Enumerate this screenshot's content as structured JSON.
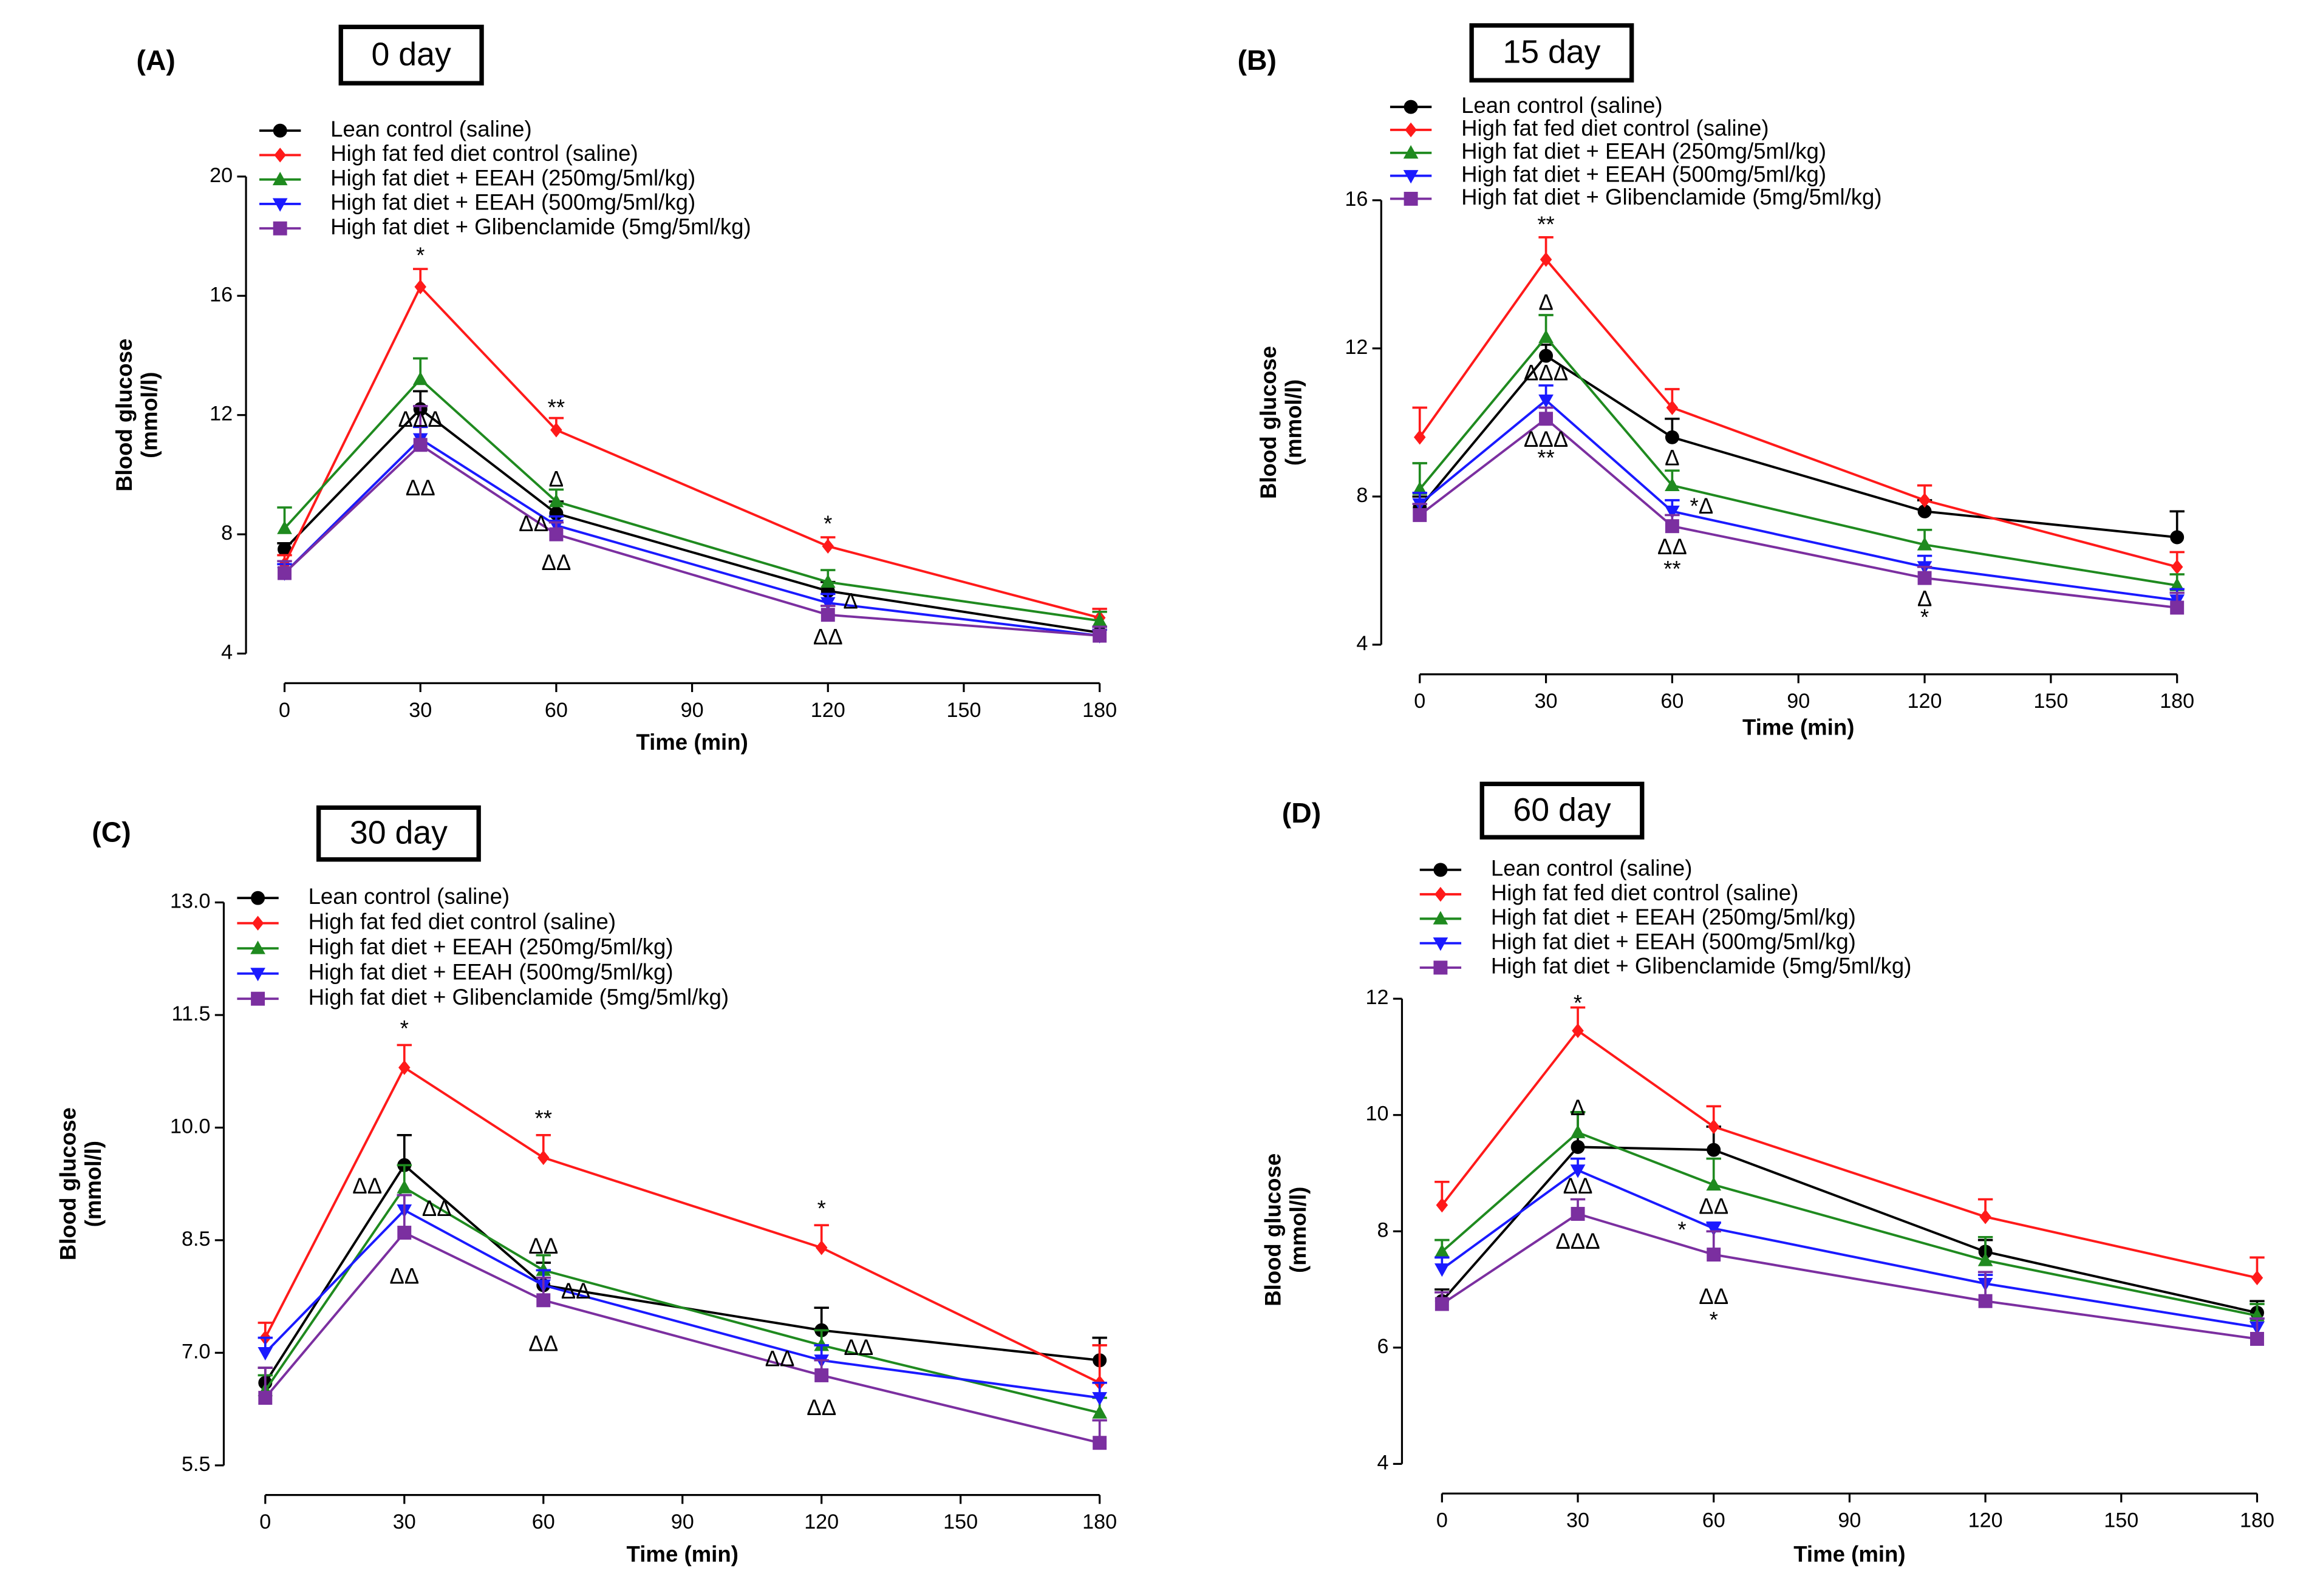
{
  "chart_data": [
    {
      "type": "line",
      "panel": "(A)",
      "title": "0 day",
      "xlabel": "Time (min)",
      "ylabel": [
        "Blood glucose",
        "(mmol/l)"
      ],
      "x": [
        0,
        30,
        60,
        120,
        180
      ],
      "xlim": [
        0,
        180
      ],
      "xticks": [
        0,
        30,
        60,
        90,
        120,
        150,
        180
      ],
      "ylim": [
        4,
        20
      ],
      "yticks": [
        4,
        8,
        12,
        16,
        20
      ],
      "series": [
        {
          "name": "Lean control (saline)",
          "color": "#000000",
          "marker": "circle",
          "values": [
            7.5,
            12.2,
            8.7,
            6.1,
            4.7
          ],
          "errors": [
            0.2,
            0.6,
            0.4,
            0.3,
            0.2
          ]
        },
        {
          "name": "High fat fed diet control (saline)",
          "color": "#ff1a1a",
          "marker": "diamond",
          "values": [
            7.0,
            16.3,
            11.5,
            7.6,
            5.2
          ],
          "errors": [
            0.3,
            0.6,
            0.4,
            0.3,
            0.3
          ]
        },
        {
          "name": "High fat diet + EEAH (250mg/5ml/kg)",
          "color": "#1f8a1f",
          "marker": "triangle-up",
          "values": [
            8.2,
            13.2,
            9.1,
            6.4,
            5.1
          ],
          "errors": [
            0.7,
            0.7,
            0.4,
            0.4,
            0.3
          ]
        },
        {
          "name": "High fat diet + EEAH (500mg/5ml/kg)",
          "color": "#1a1aff",
          "marker": "triangle-down",
          "values": [
            6.7,
            11.2,
            8.3,
            5.7,
            4.6
          ],
          "errors": [
            0.3,
            0.4,
            0.3,
            0.3,
            0.2
          ]
        },
        {
          "name": "High fat diet + Glibenclamide (5mg/5ml/kg)",
          "color": "#7b2fa0",
          "marker": "square",
          "values": [
            6.7,
            11.0,
            8.0,
            5.3,
            4.6
          ],
          "errors": [
            0.4,
            1.3,
            0.4,
            0.3,
            0.3
          ]
        }
      ],
      "annotations": [
        {
          "text": "*",
          "x": 30,
          "y": 17.3
        },
        {
          "text": "ΔΔΔ",
          "x": 30,
          "y": 11.8
        },
        {
          "text": "ΔΔ",
          "x": 30,
          "y": 9.5
        },
        {
          "text": "**",
          "x": 60,
          "y": 12.2
        },
        {
          "text": "Δ",
          "x": 60,
          "y": 9.8
        },
        {
          "text": "ΔΔ",
          "x": 55,
          "y": 8.3
        },
        {
          "text": "ΔΔ",
          "x": 60,
          "y": 7.0
        },
        {
          "text": "*",
          "x": 120,
          "y": 8.3
        },
        {
          "text": "Δ",
          "x": 125,
          "y": 5.7
        },
        {
          "text": "ΔΔ",
          "x": 120,
          "y": 4.5
        }
      ]
    },
    {
      "type": "line",
      "panel": "(B)",
      "title": "15 day",
      "xlabel": "Time (min)",
      "ylabel": [
        "Blood glucose",
        "(mmol/l)"
      ],
      "x": [
        0,
        30,
        60,
        120,
        180
      ],
      "xlim": [
        0,
        180
      ],
      "xticks": [
        0,
        30,
        60,
        90,
        120,
        150,
        180
      ],
      "ylim": [
        4,
        16
      ],
      "yticks": [
        4,
        8,
        12,
        16
      ],
      "series": [
        {
          "name": "Lean control (saline)",
          "color": "#000000",
          "marker": "circle",
          "values": [
            7.7,
            11.8,
            9.6,
            7.6,
            6.9
          ],
          "errors": [
            0.3,
            0.3,
            0.5,
            0.3,
            0.7
          ]
        },
        {
          "name": "High fat fed diet control (saline)",
          "color": "#ff1a1a",
          "marker": "diamond",
          "values": [
            9.6,
            14.4,
            10.4,
            7.9,
            6.1
          ],
          "errors": [
            0.8,
            0.6,
            0.5,
            0.4,
            0.4
          ]
        },
        {
          "name": "High fat diet + EEAH (250mg/5ml/kg)",
          "color": "#1f8a1f",
          "marker": "triangle-up",
          "values": [
            8.2,
            12.3,
            8.3,
            6.7,
            5.6
          ],
          "errors": [
            0.7,
            0.6,
            0.4,
            0.4,
            0.3
          ]
        },
        {
          "name": "High fat diet + EEAH (500mg/5ml/kg)",
          "color": "#1a1aff",
          "marker": "triangle-down",
          "values": [
            7.8,
            10.6,
            7.6,
            6.1,
            5.2
          ],
          "errors": [
            0.3,
            0.4,
            0.3,
            0.3,
            0.3
          ]
        },
        {
          "name": "High fat diet + Glibenclamide (5mg/5ml/kg)",
          "color": "#7b2fa0",
          "marker": "square",
          "values": [
            7.5,
            10.1,
            7.2,
            5.8,
            5.0
          ],
          "errors": [
            0.3,
            0.3,
            0.3,
            0.3,
            0.4
          ]
        }
      ],
      "annotations": [
        {
          "text": "**",
          "x": 30,
          "y": 15.3
        },
        {
          "text": "Δ",
          "x": 30,
          "y": 13.2
        },
        {
          "text": "ΔΔΔ",
          "x": 30,
          "y": 11.3
        },
        {
          "text": "ΔΔΔ",
          "x": 30,
          "y": 9.5
        },
        {
          "text": "**",
          "x": 30,
          "y": 9.0
        },
        {
          "text": "Δ",
          "x": 60,
          "y": 9.0
        },
        {
          "text": "*Δ",
          "x": 67,
          "y": 7.7
        },
        {
          "text": "ΔΔ",
          "x": 60,
          "y": 6.6
        },
        {
          "text": "**",
          "x": 60,
          "y": 6.0
        },
        {
          "text": "Δ",
          "x": 120,
          "y": 5.2
        },
        {
          "text": "*",
          "x": 120,
          "y": 4.7
        }
      ]
    },
    {
      "type": "line",
      "panel": "(C)",
      "title": "30 day",
      "xlabel": "Time (min)",
      "ylabel": [
        "Blood glucose",
        "(mmol/l)"
      ],
      "x": [
        0,
        30,
        60,
        120,
        180
      ],
      "xlim": [
        0,
        180
      ],
      "xticks": [
        0,
        30,
        60,
        90,
        120,
        150,
        180
      ],
      "ylim": [
        5.5,
        13.0
      ],
      "yticks": [
        5.5,
        {
          "value": 7,
          "label": "7.0"
        },
        8.5,
        {
          "value": 10,
          "label": "10.0"
        },
        11.5,
        {
          "value": 13,
          "label": "13.0"
        }
      ],
      "series": [
        {
          "name": "Lean control (saline)",
          "color": "#000000",
          "marker": "circle",
          "values": [
            6.6,
            9.5,
            7.9,
            7.3,
            6.9
          ],
          "errors": [
            0.2,
            0.4,
            0.3,
            0.3,
            0.3
          ]
        },
        {
          "name": "High fat fed diet control (saline)",
          "color": "#ff1a1a",
          "marker": "diamond",
          "values": [
            7.2,
            10.8,
            9.6,
            8.4,
            6.6
          ],
          "errors": [
            0.2,
            0.3,
            0.3,
            0.3,
            0.5
          ]
        },
        {
          "name": "High fat diet + EEAH (250mg/5ml/kg)",
          "color": "#1f8a1f",
          "marker": "triangle-up",
          "values": [
            6.5,
            9.2,
            8.1,
            7.1,
            6.2
          ],
          "errors": [
            0.2,
            0.3,
            0.2,
            0.2,
            0.2
          ]
        },
        {
          "name": "High fat diet + EEAH (500mg/5ml/kg)",
          "color": "#1a1aff",
          "marker": "triangle-down",
          "values": [
            7.0,
            8.9,
            7.9,
            6.9,
            6.4
          ],
          "errors": [
            0.2,
            0.2,
            0.2,
            0.2,
            0.2
          ]
        },
        {
          "name": "High fat diet + Glibenclamide (5mg/5ml/kg)",
          "color": "#7b2fa0",
          "marker": "square",
          "values": [
            6.4,
            8.6,
            7.7,
            6.7,
            5.8
          ],
          "errors": [
            0.4,
            0.5,
            0.3,
            0.2,
            0.3
          ]
        }
      ],
      "annotations": [
        {
          "text": "*",
          "x": 30,
          "y": 11.3
        },
        {
          "text": "ΔΔ",
          "x": 22,
          "y": 9.2
        },
        {
          "text": "ΔΔ",
          "x": 37,
          "y": 8.9
        },
        {
          "text": "ΔΔ",
          "x": 30,
          "y": 8.0
        },
        {
          "text": "**",
          "x": 60,
          "y": 10.1
        },
        {
          "text": "ΔΔ",
          "x": 60,
          "y": 8.4
        },
        {
          "text": "ΔΔ",
          "x": 67,
          "y": 7.8
        },
        {
          "text": "ΔΔ",
          "x": 60,
          "y": 7.1
        },
        {
          "text": "*",
          "x": 120,
          "y": 8.9
        },
        {
          "text": "ΔΔ",
          "x": 111,
          "y": 6.9
        },
        {
          "text": "ΔΔ",
          "x": 128,
          "y": 7.05
        },
        {
          "text": "ΔΔ",
          "x": 120,
          "y": 6.25
        }
      ]
    },
    {
      "type": "line",
      "panel": "(D)",
      "title": "60 day",
      "xlabel": "Time (min)",
      "ylabel": [
        "Blood glucose",
        "(mmol/l)"
      ],
      "x": [
        0,
        30,
        60,
        120,
        180
      ],
      "xlim": [
        0,
        180
      ],
      "xticks": [
        0,
        30,
        60,
        90,
        120,
        150,
        180
      ],
      "ylim": [
        4,
        12
      ],
      "yticks": [
        4,
        6,
        8,
        10,
        12
      ],
      "series": [
        {
          "name": "Lean control (saline)",
          "color": "#000000",
          "marker": "circle",
          "values": [
            6.8,
            9.45,
            9.4,
            7.65,
            6.6
          ],
          "errors": [
            0.2,
            0.6,
            0.4,
            0.2,
            0.2
          ]
        },
        {
          "name": "High fat fed diet control (saline)",
          "color": "#ff1a1a",
          "marker": "diamond",
          "values": [
            8.45,
            11.45,
            9.8,
            8.25,
            7.2
          ],
          "errors": [
            0.4,
            0.4,
            0.35,
            0.3,
            0.35
          ]
        },
        {
          "name": "High fat diet + EEAH (250mg/5ml/kg)",
          "color": "#1f8a1f",
          "marker": "triangle-up",
          "values": [
            7.65,
            9.7,
            8.8,
            7.5,
            6.55
          ],
          "errors": [
            0.2,
            0.35,
            0.45,
            0.4,
            0.2
          ]
        },
        {
          "name": "High fat diet + EEAH (500mg/5ml/kg)",
          "color": "#1a1aff",
          "marker": "triangle-down",
          "values": [
            7.35,
            9.05,
            8.05,
            7.1,
            6.35
          ],
          "errors": [
            0.2,
            0.2,
            0.1,
            0.15,
            0.15
          ]
        },
        {
          "name": "High fat diet + Glibenclamide (5mg/5ml/kg)",
          "color": "#7b2fa0",
          "marker": "square",
          "values": [
            6.75,
            8.3,
            7.6,
            6.8,
            6.15
          ],
          "errors": [
            0.2,
            0.25,
            0.4,
            0.5,
            0.35
          ]
        }
      ],
      "annotations": [
        {
          "text": "*",
          "x": 30,
          "y": 11.9
        },
        {
          "text": "Δ",
          "x": 30,
          "y": 10.1
        },
        {
          "text": "ΔΔ",
          "x": 30,
          "y": 8.75
        },
        {
          "text": "ΔΔΔ",
          "x": 30,
          "y": 7.8
        },
        {
          "text": "ΔΔ",
          "x": 60,
          "y": 8.4
        },
        {
          "text": "*",
          "x": 53,
          "y": 8.0
        },
        {
          "text": "ΔΔ",
          "x": 60,
          "y": 6.85
        },
        {
          "text": "*",
          "x": 60,
          "y": 6.45
        }
      ]
    }
  ]
}
